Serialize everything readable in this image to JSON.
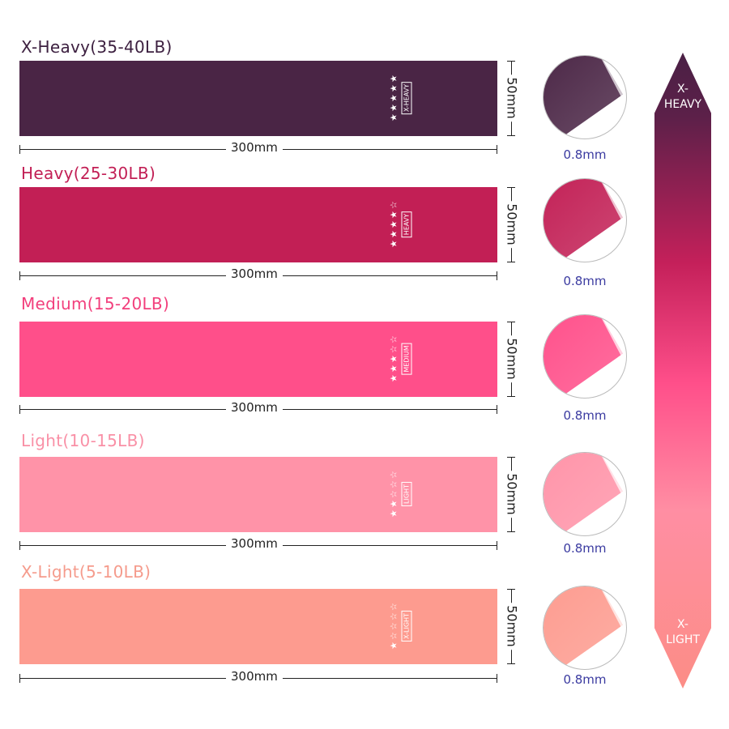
{
  "bands": [
    {
      "title": "X-Heavy(35-40LB)",
      "tag": "X-HEAVY",
      "stars_filled": 5,
      "stars_total": 5,
      "length": "300mm",
      "width": "50mm",
      "thickness": "0.8mm",
      "color": "#4a2545",
      "title_color": "#3d2040"
    },
    {
      "title": "Heavy(25-30LB)",
      "tag": "HEAVY",
      "stars_filled": 4,
      "stars_total": 5,
      "length": "300mm",
      "width": "50mm",
      "thickness": "0.8mm",
      "color": "#c21f55",
      "title_color": "#c21f55"
    },
    {
      "title": "Medium(15-20LB)",
      "tag": "MEDIUM",
      "stars_filled": 3,
      "stars_total": 5,
      "length": "300mm",
      "width": "50mm",
      "thickness": "0.8mm",
      "color": "#ff4f8a",
      "title_color": "#f23f7c"
    },
    {
      "title": "Light(10-15LB)",
      "tag": "LIGHT",
      "stars_filled": 2,
      "stars_total": 5,
      "length": "300mm",
      "width": "50mm",
      "thickness": "0.8mm",
      "color": "#ff93a8",
      "title_color": "#f990a6"
    },
    {
      "title": "X-Light(5-10LB)",
      "tag": "X-LIGHT",
      "stars_filled": 1,
      "stars_total": 5,
      "length": "300mm",
      "width": "50mm",
      "thickness": "0.8mm",
      "color": "#fd9b8f",
      "title_color": "#f59b8c"
    }
  ],
  "scale": {
    "top_label": "X-\nHEAVY",
    "bottom_label": "X-\nLIGHT",
    "top_color": "#4a2045",
    "bottom_color": "#fc8d86"
  }
}
